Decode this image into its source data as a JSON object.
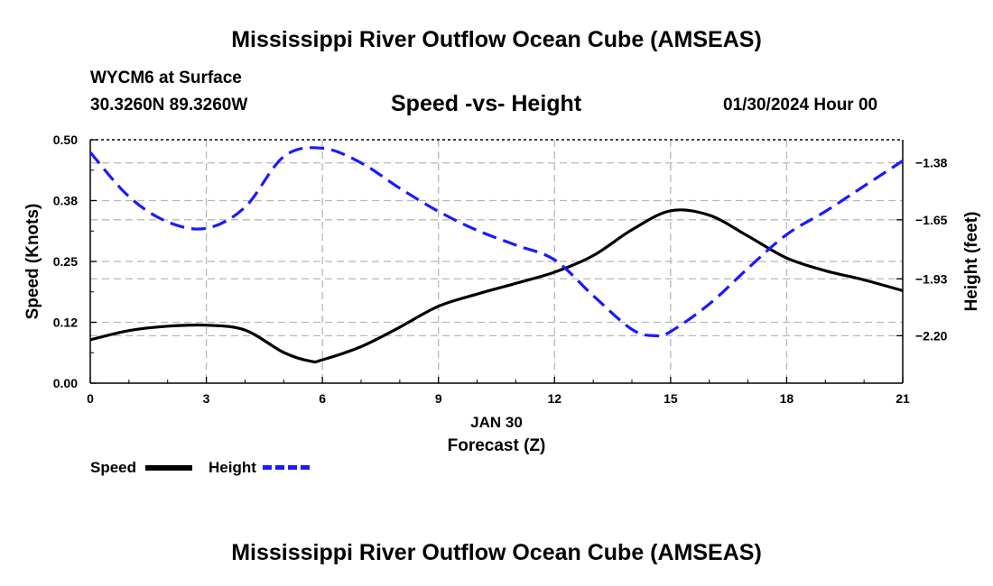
{
  "header": {
    "title": "Mississippi River Outflow Ocean Cube (AMSEAS)",
    "station": "WYCM6 at Surface",
    "coords": "30.3260N  89.3260W",
    "subtitle": "Speed -vs- Height",
    "datetime": "01/30/2024 Hour 00"
  },
  "footer": {
    "title": "Mississippi River Outflow Ocean Cube (AMSEAS)"
  },
  "legend": {
    "speed": "Speed",
    "height": "Height"
  },
  "chart_data": {
    "type": "line",
    "title": "Speed -vs- Height",
    "xlabel": "Forecast (Z)",
    "xsublabel": "JAN 30",
    "ylabel": "Speed (Knots)",
    "y2label": "Height (feet)",
    "xlim": [
      0,
      21
    ],
    "ylim": [
      0,
      0.5
    ],
    "y2lim": [
      -2.425,
      -1.27
    ],
    "xticks": [
      0,
      3,
      6,
      9,
      12,
      15,
      18,
      21
    ],
    "xtick_labels": [
      "0",
      "3",
      "6",
      "9",
      "12",
      "15",
      "18",
      "21"
    ],
    "yticks": [
      0,
      0.125,
      0.25,
      0.375,
      0.5
    ],
    "ytick_labels": [
      "0.00",
      "0.12",
      "0.25",
      "0.38",
      "0.50"
    ],
    "y2ticks": [
      -1.38,
      -1.65,
      -1.93,
      -2.2
    ],
    "y2tick_labels": [
      "−1.38",
      "−1.65",
      "−1.93",
      "−2.20"
    ],
    "grid": true,
    "colors": {
      "speed": "#000000",
      "height": "#1a1aff"
    },
    "series": [
      {
        "name": "Speed",
        "axis": "left",
        "style": "solid",
        "x": [
          0,
          1,
          2,
          3,
          4,
          5,
          5.7,
          6,
          7,
          8,
          9,
          10,
          11,
          12,
          13,
          14,
          15,
          16,
          17,
          18,
          19,
          20,
          21
        ],
        "values": [
          0.089,
          0.108,
          0.117,
          0.119,
          0.109,
          0.063,
          0.045,
          0.048,
          0.075,
          0.115,
          0.158,
          0.183,
          0.205,
          0.228,
          0.262,
          0.315,
          0.354,
          0.345,
          0.302,
          0.257,
          0.231,
          0.212,
          0.19
        ]
      },
      {
        "name": "Height",
        "axis": "right",
        "style": "dashed",
        "x": [
          0,
          1,
          2,
          3,
          4,
          5,
          6,
          7,
          8,
          9,
          10,
          11,
          12,
          13,
          14,
          14.6,
          15,
          16,
          17,
          18,
          19,
          20,
          21
        ],
        "values": [
          -1.33,
          -1.54,
          -1.66,
          -1.69,
          -1.59,
          -1.35,
          -1.31,
          -1.38,
          -1.5,
          -1.61,
          -1.7,
          -1.77,
          -1.84,
          -2.01,
          -2.17,
          -2.2,
          -2.18,
          -2.05,
          -1.88,
          -1.72,
          -1.61,
          -1.49,
          -1.37
        ]
      }
    ]
  }
}
